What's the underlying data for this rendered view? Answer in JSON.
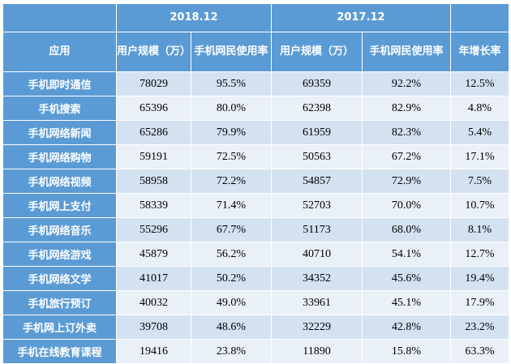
{
  "header": {
    "group_2018": "2018.12",
    "group_2017": "2017.12",
    "col_app": "应用",
    "col_users_2018": "用户规模（万）",
    "col_rate_2018": "手机网民使用率",
    "col_users_2017": "用户规模（万）",
    "col_rate_2017": "手机网民使用率",
    "col_growth": "年增长率"
  },
  "rows": [
    {
      "app": "手机即时通信",
      "users_2018": "78029",
      "rate_2018": "95.5%",
      "users_2017": "69359",
      "rate_2017": "92.2%",
      "growth": "12.5%"
    },
    {
      "app": "手机搜索",
      "users_2018": "65396",
      "rate_2018": "80.0%",
      "users_2017": "62398",
      "rate_2017": "82.9%",
      "growth": "4.8%"
    },
    {
      "app": "手机网络新闻",
      "users_2018": "65286",
      "rate_2018": "79.9%",
      "users_2017": "61959",
      "rate_2017": "82.3%",
      "growth": "5.4%"
    },
    {
      "app": "手机网络购物",
      "users_2018": "59191",
      "rate_2018": "72.5%",
      "users_2017": "50563",
      "rate_2017": "67.2%",
      "growth": "17.1%"
    },
    {
      "app": "手机网络视频",
      "users_2018": "58958",
      "rate_2018": "72.2%",
      "users_2017": "54857",
      "rate_2017": "72.9%",
      "growth": "7.5%"
    },
    {
      "app": "手机网上支付",
      "users_2018": "58339",
      "rate_2018": "71.4%",
      "users_2017": "52703",
      "rate_2017": "70.0%",
      "growth": "10.7%"
    },
    {
      "app": "手机网络音乐",
      "users_2018": "55296",
      "rate_2018": "67.7%",
      "users_2017": "51173",
      "rate_2017": "68.0%",
      "growth": "8.1%"
    },
    {
      "app": "手机网络游戏",
      "users_2018": "45879",
      "rate_2018": "56.2%",
      "users_2017": "40710",
      "rate_2017": "54.1%",
      "growth": "12.7%"
    },
    {
      "app": "手机网络文学",
      "users_2018": "41017",
      "rate_2018": "50.2%",
      "users_2017": "34352",
      "rate_2017": "45.6%",
      "growth": "19.4%"
    },
    {
      "app": "手机旅行预订",
      "users_2018": "40032",
      "rate_2018": "49.0%",
      "users_2017": "33961",
      "rate_2017": "45.1%",
      "growth": "17.9%"
    },
    {
      "app": "手机网上订外卖",
      "users_2018": "39708",
      "rate_2018": "48.6%",
      "users_2017": "32229",
      "rate_2017": "42.8%",
      "growth": "23.2%"
    },
    {
      "app": "手机在线教育课程",
      "users_2018": "19416",
      "rate_2018": "23.8%",
      "users_2017": "11890",
      "rate_2017": "15.8%",
      "growth": "63.3%"
    }
  ],
  "colors": {
    "header_blue": "#5b9bd5",
    "row_dark": "#d3e1f1",
    "row_light": "#eaf0f8"
  }
}
